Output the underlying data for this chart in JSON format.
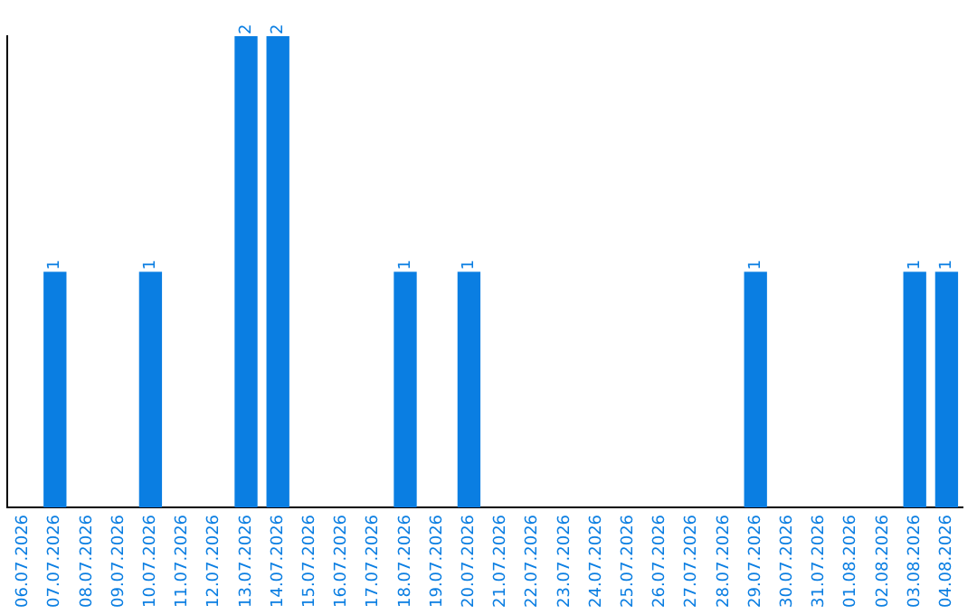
{
  "chart_data": {
    "type": "bar",
    "relative": false,
    "categories": [
      "06.07.2026",
      "07.07.2026",
      "08.07.2026",
      "09.07.2026",
      "10.07.2026",
      "11.07.2026",
      "12.07.2026",
      "13.07.2026",
      "14.07.2026",
      "15.07.2026",
      "16.07.2026",
      "17.07.2026",
      "18.07.2026",
      "19.07.2026",
      "20.07.2026",
      "21.07.2026",
      "22.07.2026",
      "23.07.2026",
      "24.07.2026",
      "25.07.2026",
      "26.07.2026",
      "27.07.2026",
      "28.07.2026",
      "29.07.2026",
      "30.07.2026",
      "31.07.2026",
      "01.08.2026",
      "02.08.2026",
      "03.08.2026",
      "04.08.2026"
    ],
    "values": [
      0,
      1,
      0,
      0,
      1,
      0,
      0,
      2,
      2,
      0,
      0,
      0,
      1,
      0,
      1,
      0,
      0,
      0,
      0,
      0,
      0,
      0,
      0,
      1,
      0,
      0,
      0,
      0,
      1,
      1
    ],
    "value_labels": [
      null,
      "1",
      null,
      null,
      "1",
      null,
      null,
      "2",
      "2",
      null,
      null,
      null,
      "1",
      null,
      "1",
      null,
      null,
      null,
      null,
      null,
      null,
      null,
      null,
      "1",
      null,
      null,
      null,
      null,
      "1",
      "1"
    ],
    "color": "#0a7ee2",
    "grid": false,
    "legend": false,
    "tick_labels": "x"
  }
}
